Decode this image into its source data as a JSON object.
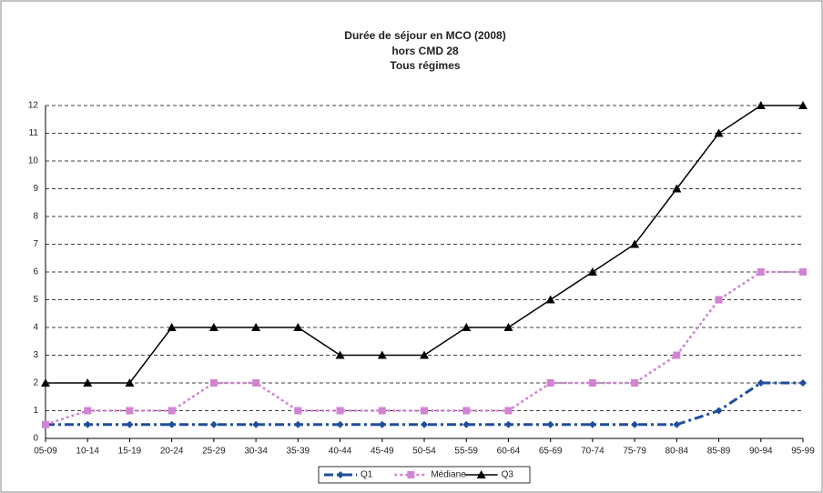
{
  "chart_data": {
    "type": "line",
    "title": [
      "Durée de séjour en MCO (2008)",
      "hors CMD 28",
      "Tous régimes"
    ],
    "categories": [
      "05-09",
      "10-14",
      "15-19",
      "20-24",
      "25-29",
      "30-34",
      "35-39",
      "40-44",
      "45-49",
      "50-54",
      "55-59",
      "60-64",
      "65-69",
      "70-74",
      "75-79",
      "80-84",
      "85-89",
      "90-94",
      "95-99"
    ],
    "series": [
      {
        "name": "Q1",
        "color": "#1f4e9c",
        "marker": "diamond",
        "dash": "dashdot",
        "values": [
          0.5,
          0.5,
          0.5,
          0.5,
          0.5,
          0.5,
          0.5,
          0.5,
          0.5,
          0.5,
          0.5,
          0.5,
          0.5,
          0.5,
          0.5,
          0.5,
          1,
          2,
          2
        ]
      },
      {
        "name": "Médiane",
        "color": "#d283d2",
        "marker": "square",
        "dash": "dotted",
        "values": [
          0.5,
          1,
          1,
          1,
          2,
          2,
          1,
          1,
          1,
          1,
          1,
          1,
          2,
          2,
          2,
          3,
          5,
          6,
          6
        ]
      },
      {
        "name": "Q3",
        "color": "#000000",
        "marker": "triangle",
        "dash": "solid",
        "values": [
          2,
          2,
          2,
          4,
          4,
          4,
          4,
          3,
          3,
          3,
          4,
          4,
          5,
          6,
          7,
          9,
          11,
          12,
          12
        ]
      }
    ],
    "ylim": [
      0,
      12
    ],
    "yticks": [
      0,
      1,
      2,
      3,
      4,
      5,
      6,
      7,
      8,
      9,
      10,
      11,
      12
    ],
    "grid": true,
    "legend": "bottom"
  }
}
